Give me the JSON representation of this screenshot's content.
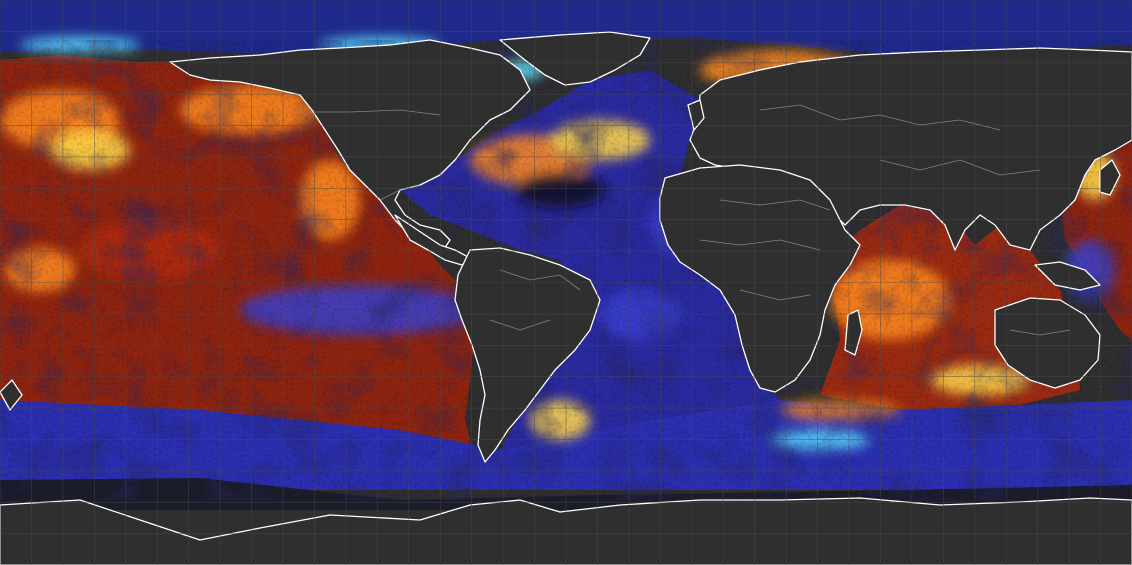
{
  "map": {
    "projection": "equirectangular",
    "view": "global",
    "variable": "sea-surface-anomaly",
    "colors": {
      "background": "#2f2f2f",
      "land": "#2f2f2f",
      "graticule": "#4a4a4a",
      "coastline": "#ffffff",
      "borders": "#9a9a9a",
      "polar_ice": "#1b1d2a"
    },
    "colormap": {
      "negative_strong": "#5ee0ff",
      "negative": "#3b3fd0",
      "neutral": "#121122",
      "positive": "#b22a0e",
      "positive_strong": "#ff8a1c",
      "positive_extreme": "#ffd84a"
    },
    "graticule_step_degrees": 10
  }
}
